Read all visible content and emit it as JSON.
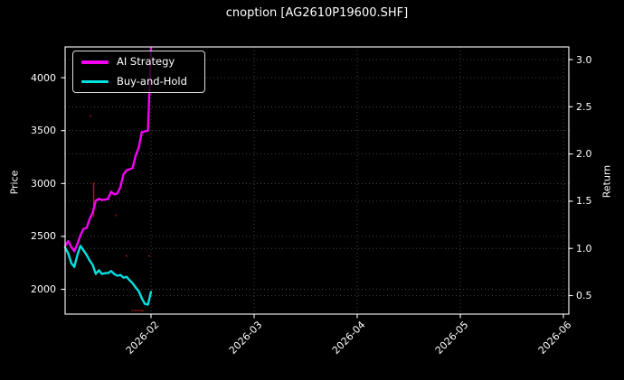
{
  "chart_data": {
    "type": "line",
    "title": "cnoption [AG2610P19600.SHF]",
    "theme": "dark_background",
    "grid": true,
    "legend_position": "upper-left",
    "x": [
      "2026-01-04",
      "2026-01-05",
      "2026-01-06",
      "2026-01-07",
      "2026-01-08",
      "2026-01-09",
      "2026-01-10",
      "2026-01-11",
      "2026-01-12",
      "2026-01-13",
      "2026-01-14",
      "2026-01-15",
      "2026-01-16",
      "2026-01-17",
      "2026-01-18",
      "2026-01-19",
      "2026-01-20",
      "2026-01-21",
      "2026-01-22",
      "2026-01-23",
      "2026-01-24",
      "2026-01-25",
      "2026-01-26",
      "2026-01-27",
      "2026-01-28",
      "2026-01-29",
      "2026-01-30",
      "2026-01-31",
      "2026-02-01"
    ],
    "series": [
      {
        "name": "AI Strategy",
        "color": "#f400f4",
        "values": [
          2410,
          2455,
          2400,
          2360,
          2428,
          2512,
          2572,
          2580,
          2665,
          2725,
          2838,
          2855,
          2845,
          2848,
          2855,
          2922,
          2898,
          2905,
          2965,
          3085,
          3125,
          3135,
          3145,
          3262,
          3340,
          3485,
          3492,
          3500,
          4280
        ]
      },
      {
        "name": "Buy-and-Hold",
        "color": "#00e1e1",
        "values": [
          2395,
          2340,
          2248,
          2212,
          2325,
          2410,
          2368,
          2325,
          2272,
          2230,
          2145,
          2180,
          2145,
          2153,
          2153,
          2172,
          2145,
          2128,
          2136,
          2110,
          2118,
          2085,
          2058,
          2017,
          1983,
          1915,
          1862,
          1855,
          1975
        ]
      }
    ],
    "left_axis": {
      "label": "Price",
      "ticks": [
        2000,
        2500,
        3000,
        3500,
        4000
      ],
      "range": [
        1770,
        4290
      ]
    },
    "right_axis": {
      "label": "Return",
      "ticks": [
        "0.5",
        "1.0",
        "1.5",
        "2.0",
        "2.5",
        "3.0"
      ],
      "range": [
        0.31,
        3.13
      ]
    },
    "x_axis": {
      "ticks": [
        "2026-02",
        "2026-03",
        "2026-04",
        "2026-05",
        "2026-06"
      ],
      "range": [
        "2026-01-04",
        "2026-06-02"
      ]
    },
    "annotations": {
      "red_vline": {
        "date": "2026-01-13",
        "day": 9.3,
        "price_from": 2683,
        "price_to": 3007,
        "color": "#c41000"
      },
      "faint_dots": [
        {
          "day": 8.3,
          "price": 3638
        },
        {
          "day": 16.5,
          "price": 2700
        },
        {
          "day": 20.0,
          "price": 2316
        },
        {
          "day": 27.4,
          "price": 2316
        },
        {
          "day": 25.3,
          "price": 1795
        }
      ],
      "faint_dash": {
        "day_from": 21.5,
        "day_to": 25.3,
        "price": 1800
      }
    },
    "colors": {
      "background": "#000000",
      "text": "#ffffff",
      "grid": "rgba(255,255,255,0.32)",
      "spine": "#ffffff"
    }
  }
}
